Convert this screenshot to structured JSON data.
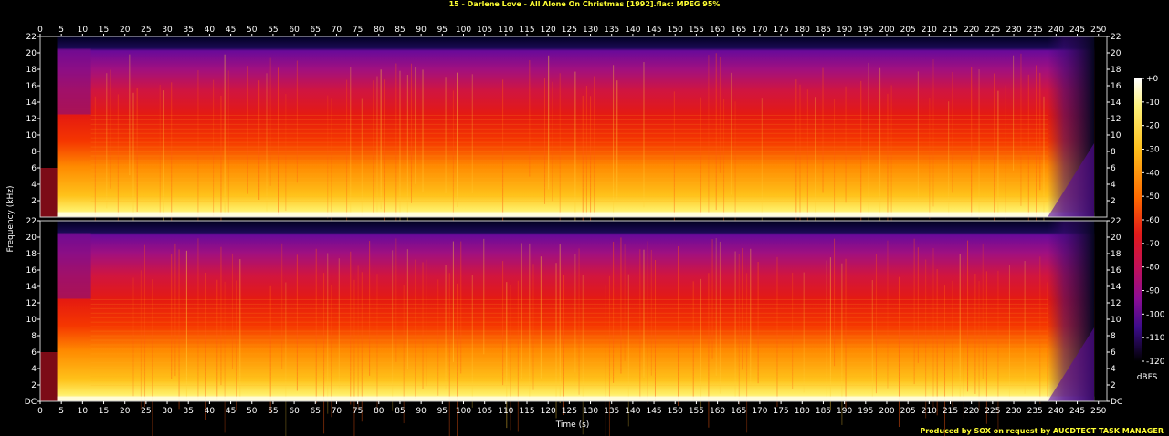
{
  "header": {
    "title": "15 - Darlene Love - All Alone On Christmas [1992].flac: MPEG 95%"
  },
  "footer": {
    "credit": "Produced by SOX on request by AUCDTECT TASK MANAGER"
  },
  "chart_data": {
    "type": "heatmap",
    "title": "15 - Darlene Love - All Alone On Christmas [1992].flac: MPEG 95%",
    "xlabel": "Time (s)",
    "ylabel": "Frequency (kHz)",
    "xlim": [
      0,
      252
    ],
    "ylim": [
      0,
      22
    ],
    "x_ticks": [
      0,
      5,
      10,
      15,
      20,
      25,
      30,
      35,
      40,
      45,
      50,
      55,
      60,
      65,
      70,
      75,
      80,
      85,
      90,
      95,
      100,
      105,
      110,
      115,
      120,
      125,
      130,
      135,
      140,
      145,
      150,
      155,
      160,
      165,
      170,
      175,
      180,
      185,
      190,
      195,
      200,
      205,
      210,
      215,
      220,
      225,
      230,
      235,
      240,
      245,
      250
    ],
    "y_ticks": [
      "DC",
      "2",
      "4",
      "6",
      "8",
      "10",
      "12",
      "14",
      "16",
      "18",
      "20",
      "22"
    ],
    "channels": [
      "left",
      "right"
    ],
    "colorbar": {
      "label": "dBFS",
      "range": [
        -120,
        0
      ],
      "ticks": [
        "+0",
        "-10",
        "-20",
        "-30",
        "-40",
        "-50",
        "-60",
        "-70",
        "-80",
        "-90",
        "-100",
        "-110",
        "-120"
      ]
    },
    "spectral_features": {
      "signal_start_s": 4,
      "full_band_start_s": 12,
      "fade_out_start_s": 238,
      "signal_end_s": 249,
      "bandwidth_cutoff_khz": 20.5,
      "level_bands": [
        {
          "freq_khz": [
            0,
            3
          ],
          "dbfs": -15
        },
        {
          "freq_khz": [
            3,
            8
          ],
          "dbfs": -35
        },
        {
          "freq_khz": [
            8,
            12.5
          ],
          "dbfs": -45
        },
        {
          "freq_khz": [
            12.5,
            18
          ],
          "dbfs": -55
        },
        {
          "freq_khz": [
            18,
            20.5
          ],
          "dbfs": -75
        },
        {
          "freq_khz": [
            20.5,
            22
          ],
          "dbfs": -118
        }
      ]
    },
    "grid": false,
    "legend": "right"
  },
  "colors": {
    "background": "#000000",
    "text": "#ffffff",
    "title": "#ffff33",
    "frame": "#cccccc"
  }
}
